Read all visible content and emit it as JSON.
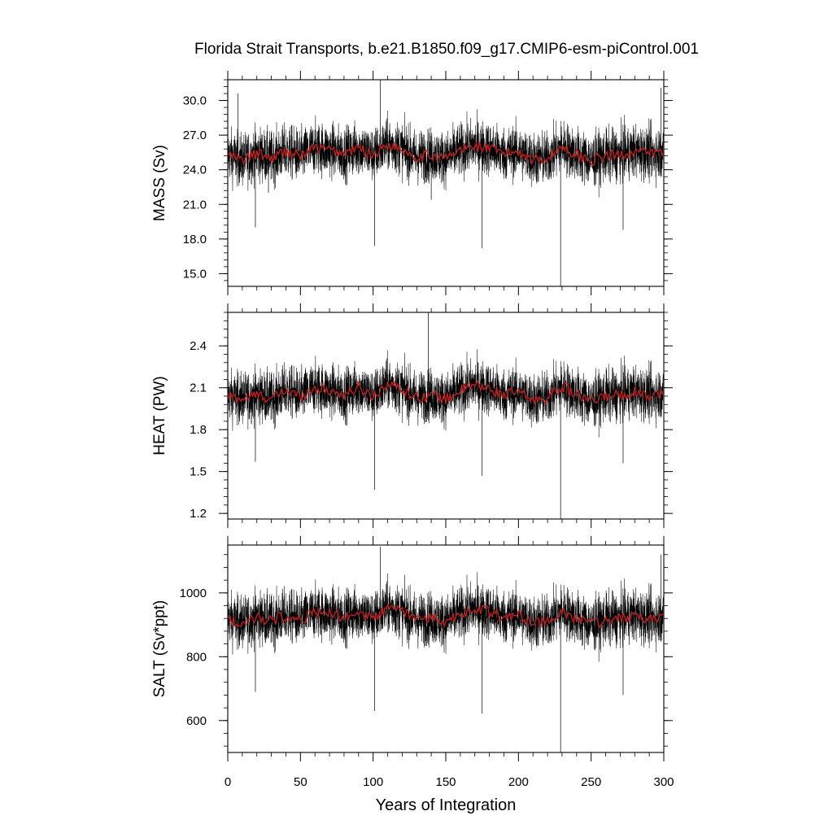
{
  "title": "Florida Strait Transports, b.e21.B1850.f09_g17.CMIP6-esm-piControl.001",
  "xlabel": "Years of Integration",
  "chart_data": [
    {
      "type": "line",
      "name": "mass",
      "ylabel": "MASS (Sv)",
      "xlim": [
        0,
        300
      ],
      "ylim": [
        13.9,
        31.8
      ],
      "yticks": [
        15.0,
        18.0,
        21.0,
        24.0,
        27.0,
        30.0
      ],
      "ytick_labels": [
        "15.0",
        "18.0",
        "21.0",
        "24.0",
        "27.0",
        "30.0"
      ],
      "mean": 25.4,
      "noise": 1.6,
      "annual": {
        "x": [
          0,
          10,
          20,
          30,
          40,
          50,
          60,
          70,
          80,
          90,
          100,
          110,
          120,
          130,
          140,
          150,
          160,
          170,
          180,
          190,
          200,
          210,
          220,
          230,
          240,
          250,
          260,
          270,
          280,
          290,
          300
        ],
        "y": [
          25.3,
          24.8,
          25.4,
          25.0,
          25.6,
          25.2,
          25.9,
          25.7,
          25.4,
          25.9,
          25.3,
          26.2,
          25.8,
          25.1,
          25.3,
          25.0,
          25.7,
          26.1,
          25.8,
          25.4,
          25.6,
          24.9,
          25.0,
          26.0,
          25.3,
          24.8,
          25.2,
          25.3,
          25.6,
          25.4,
          25.5
        ]
      },
      "spikes": [
        {
          "x": 7,
          "y": 30.6
        },
        {
          "x": 19,
          "y": 19.0
        },
        {
          "x": 28,
          "y": 22.0
        },
        {
          "x": 101,
          "y": 17.4
        },
        {
          "x": 105,
          "y": 31.8
        },
        {
          "x": 140,
          "y": 21.4
        },
        {
          "x": 175,
          "y": 17.2
        },
        {
          "x": 229,
          "y": 13.9
        },
        {
          "x": 272,
          "y": 18.8
        },
        {
          "x": 298,
          "y": 31.1
        }
      ]
    },
    {
      "type": "line",
      "name": "heat",
      "ylabel": "HEAT (PW)",
      "xlim": [
        0,
        300
      ],
      "ylim": [
        1.16,
        2.64
      ],
      "yticks": [
        1.2,
        1.5,
        1.8,
        2.1,
        2.4
      ],
      "ytick_labels": [
        "1.2",
        "1.5",
        "1.8",
        "2.1",
        "2.4"
      ],
      "mean": 2.06,
      "noise": 0.13,
      "annual": {
        "x": [
          0,
          10,
          20,
          30,
          40,
          50,
          60,
          70,
          80,
          90,
          100,
          110,
          120,
          130,
          140,
          150,
          160,
          170,
          180,
          190,
          200,
          210,
          220,
          230,
          240,
          250,
          260,
          270,
          280,
          290,
          300
        ],
        "y": [
          2.04,
          2.02,
          2.05,
          2.02,
          2.08,
          2.04,
          2.1,
          2.08,
          2.05,
          2.1,
          2.04,
          2.13,
          2.09,
          2.03,
          2.05,
          2.02,
          2.08,
          2.12,
          2.09,
          2.05,
          2.07,
          2.01,
          2.03,
          2.11,
          2.05,
          2.0,
          2.04,
          2.05,
          2.07,
          2.05,
          2.06
        ]
      },
      "spikes": [
        {
          "x": 101,
          "y": 1.37
        },
        {
          "x": 138,
          "y": 2.64
        },
        {
          "x": 175,
          "y": 1.47
        },
        {
          "x": 229,
          "y": 1.16
        },
        {
          "x": 19,
          "y": 1.57
        },
        {
          "x": 272,
          "y": 1.56
        }
      ]
    },
    {
      "type": "line",
      "name": "salt",
      "ylabel": "SALT (Sv*ppt)",
      "xlim": [
        0,
        300
      ],
      "ylim": [
        500,
        1150
      ],
      "yticks": [
        600,
        800,
        1000
      ],
      "ytick_labels": [
        "600",
        "800",
        "1000"
      ],
      "mean": 925,
      "noise": 58,
      "annual": {
        "x": [
          0,
          10,
          20,
          30,
          40,
          50,
          60,
          70,
          80,
          90,
          100,
          110,
          120,
          130,
          140,
          150,
          160,
          170,
          180,
          190,
          200,
          210,
          220,
          230,
          240,
          250,
          260,
          270,
          280,
          290,
          300
        ],
        "y": [
          920,
          905,
          925,
          910,
          930,
          915,
          940,
          935,
          925,
          940,
          920,
          955,
          940,
          915,
          920,
          910,
          935,
          950,
          940,
          925,
          930,
          905,
          910,
          945,
          920,
          900,
          915,
          920,
          930,
          920,
          925
        ]
      },
      "spikes": [
        {
          "x": 101,
          "y": 630
        },
        {
          "x": 105,
          "y": 1145
        },
        {
          "x": 19,
          "y": 690
        },
        {
          "x": 175,
          "y": 622
        },
        {
          "x": 229,
          "y": 500
        },
        {
          "x": 272,
          "y": 680
        },
        {
          "x": 298,
          "y": 1120
        }
      ]
    }
  ],
  "xaxis": {
    "ticks": [
      0,
      50,
      100,
      150,
      200,
      250,
      300
    ],
    "labels": [
      "0",
      "50",
      "100",
      "150",
      "200",
      "250",
      "300"
    ]
  },
  "colors": {
    "monthly": "#000000",
    "annual": "#cc1f1f",
    "frame": "#000000"
  }
}
